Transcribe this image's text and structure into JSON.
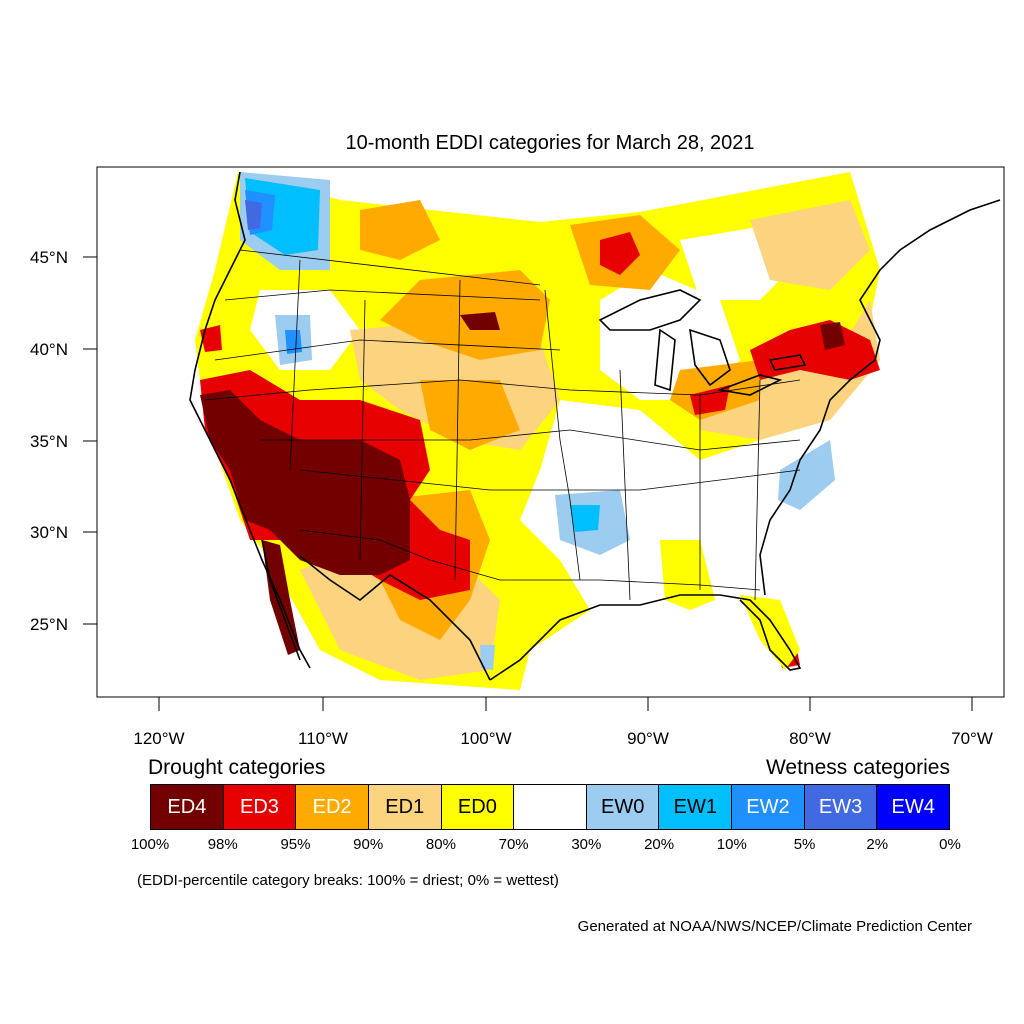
{
  "title": "10-month EDDI categories for March 28, 2021",
  "lat_labels": [
    "45°N",
    "40°N",
    "35°N",
    "30°N",
    "25°N"
  ],
  "lon_labels": [
    "120°W",
    "110°W",
    "100°W",
    "90°W",
    "80°W",
    "70°W"
  ],
  "legend": {
    "drought_heading": "Drought categories",
    "wetness_heading": "Wetness categories",
    "categories": [
      {
        "label": "ED4",
        "color": "#730000",
        "text_color": "#ffffff"
      },
      {
        "label": "ED3",
        "color": "#e60000",
        "text_color": "#ffffff"
      },
      {
        "label": "ED2",
        "color": "#ffaa00",
        "text_color": "#ffffff"
      },
      {
        "label": "ED1",
        "color": "#fcd37f",
        "text_color": "#000000"
      },
      {
        "label": "ED0",
        "color": "#ffff00",
        "text_color": "#000000"
      },
      {
        "label": "",
        "color": "#ffffff",
        "text_color": "#000000"
      },
      {
        "label": "EW0",
        "color": "#9ccdf0",
        "text_color": "#000000"
      },
      {
        "label": "EW1",
        "color": "#00bfff",
        "text_color": "#000000"
      },
      {
        "label": "EW2",
        "color": "#1e90ff",
        "text_color": "#ffffff"
      },
      {
        "label": "EW3",
        "color": "#4169e1",
        "text_color": "#ffffff"
      },
      {
        "label": "EW4",
        "color": "#0000ff",
        "text_color": "#ffffff"
      }
    ],
    "percentiles": [
      "100%",
      "98%",
      "95%",
      "90%",
      "80%",
      "70%",
      "30%",
      "20%",
      "10%",
      "5%",
      "2%",
      "0%"
    ]
  },
  "note": "(EDDI-percentile category breaks: 100% = driest; 0% = wettest)",
  "credit": "Generated at NOAA/NWS/NCEP/Climate Prediction Center"
}
